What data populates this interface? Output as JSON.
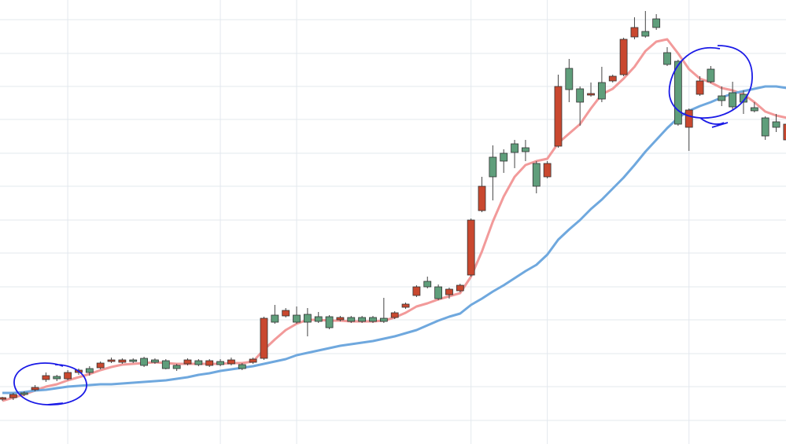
{
  "chart_data": {
    "type": "candlestick",
    "open": [
      57,
      59,
      65,
      69,
      82,
      86,
      83,
      91,
      96,
      97,
      105,
      104,
      107,
      109,
      107,
      106,
      100,
      102,
      106,
      100,
      105,
      102,
      101,
      104,
      109,
      164,
      163,
      164,
      165,
      162,
      162,
      158,
      161,
      161,
      161,
      160,
      161,
      174,
      189,
      207,
      200,
      190,
      195,
      215,
      297,
      365,
      370,
      382,
      377,
      357,
      340,
      379,
      478,
      452,
      444,
      460,
      462,
      470,
      518,
      525,
      541,
      498,
      487,
      403,
      445,
      477,
      443,
      447,
      445,
      428,
      415,
      410,
      387
    ],
    "high": [
      60,
      65,
      67,
      75,
      91,
      88,
      94,
      96,
      99,
      105,
      110,
      109,
      109,
      111,
      109,
      108,
      102,
      109,
      108,
      108,
      108,
      110,
      103,
      110,
      162,
      177,
      173,
      175,
      173,
      168,
      164,
      163,
      163,
      163,
      163,
      186,
      169,
      180,
      202,
      213,
      203,
      199,
      204,
      287,
      340,
      380,
      375,
      387,
      387,
      360,
      360,
      470,
      490,
      455,
      460,
      480,
      470,
      517,
      543,
      551,
      547,
      505,
      489,
      427,
      468,
      481,
      455,
      461,
      450,
      435,
      417,
      420,
      410
    ],
    "low": [
      55,
      56,
      61,
      67,
      79,
      80,
      81,
      88,
      87,
      95,
      103,
      102,
      103,
      98,
      102,
      95,
      93,
      100,
      99,
      98,
      99,
      100,
      94,
      102,
      107,
      153,
      161,
      153,
      137,
      154,
      146,
      156,
      154,
      154,
      154,
      154,
      159,
      172,
      187,
      198,
      183,
      185,
      193,
      213,
      295,
      310,
      345,
      351,
      360,
      319,
      338,
      377,
      435,
      405,
      442,
      435,
      460,
      468,
      515,
      517,
      527,
      481,
      405,
      373,
      443,
      459,
      430,
      425,
      420,
      422,
      387,
      397,
      377
    ],
    "close": [
      59,
      63,
      63,
      72,
      87,
      83,
      91,
      94,
      91,
      103,
      107,
      107,
      105,
      100,
      104,
      96,
      96,
      107,
      101,
      106,
      101,
      107,
      96,
      108,
      160,
      155,
      170,
      155,
      155,
      156,
      148,
      161,
      156,
      156,
      156,
      156,
      167,
      178,
      200,
      200,
      185,
      197,
      202,
      285,
      328,
      340,
      360,
      371,
      372,
      328,
      357,
      455,
      451,
      435,
      446,
      439,
      468,
      515,
      530,
      519,
      530,
      483,
      407,
      425,
      462,
      461,
      437,
      429,
      435,
      424,
      392,
      403,
      407
    ],
    "up_color": "#c9482f",
    "down_color": "#5f9e7b",
    "lines": [
      {
        "color": "#f29a9a",
        "values": [
          55,
          59,
          63,
          68,
          73,
          76,
          81,
          85,
          89,
          94,
          98,
          101,
          102,
          103,
          104,
          103,
          102,
          102,
          102,
          102,
          102,
          103,
          103,
          105,
          120,
          133,
          145,
          153,
          158,
          158,
          157,
          157,
          156,
          156,
          156,
          157,
          161,
          167,
          175,
          179,
          184,
          188,
          192,
          213,
          245,
          283,
          315,
          340,
          355,
          360,
          363,
          383,
          395,
          407,
          427,
          445,
          452,
          465,
          480,
          500,
          512,
          515,
          497,
          477,
          465,
          460,
          453,
          450,
          445,
          435,
          423,
          418,
          415
        ]
      },
      {
        "color": "#6fa8de",
        "values": [
          65,
          65,
          66,
          68,
          69,
          71,
          73,
          74,
          75,
          76,
          76,
          77,
          78,
          79,
          80,
          81,
          83,
          85,
          88,
          90,
          93,
          95,
          97,
          99,
          102,
          105,
          108,
          113,
          116,
          119,
          122,
          125,
          127,
          129,
          131,
          134,
          137,
          141,
          145,
          151,
          157,
          162,
          166,
          177,
          185,
          194,
          202,
          211,
          220,
          228,
          241,
          260,
          273,
          285,
          299,
          311,
          325,
          339,
          355,
          372,
          387,
          402,
          415,
          424,
          430,
          435,
          441,
          446,
          449,
          452,
          455,
          455,
          453
        ]
      }
    ],
    "ylim": [
      0,
      565
    ],
    "yticks": [
      30,
      73,
      115,
      158,
      200,
      243,
      285,
      328,
      370,
      413,
      455,
      497,
      540
    ],
    "xlim": [
      -0.217,
      71.9
    ],
    "xticks": [
      6,
      20,
      27,
      43,
      50,
      63
    ],
    "grid": true
  }
}
